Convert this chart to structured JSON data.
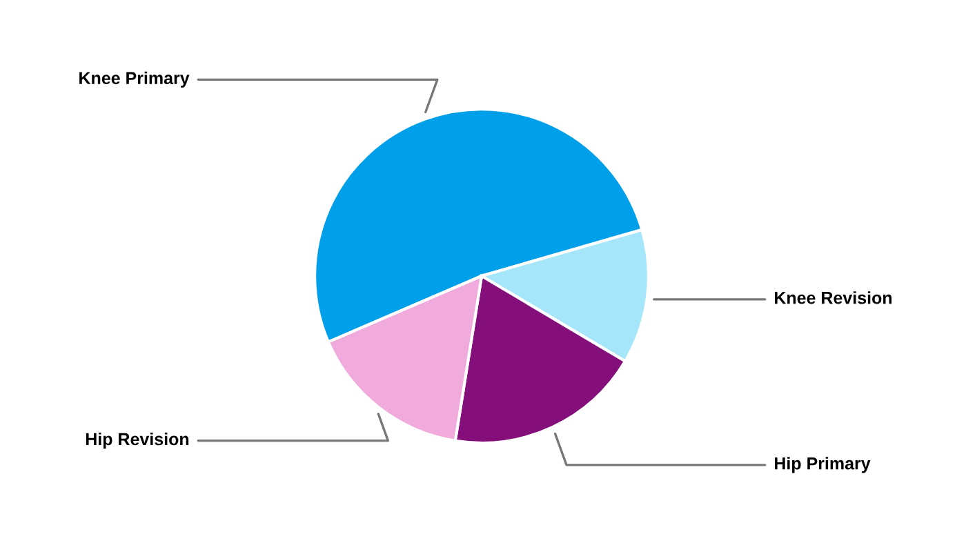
{
  "chart_data": {
    "type": "pie",
    "categories": [
      "Knee Primary",
      "Knee Revision",
      "Hip Primary",
      "Hip Revision"
    ],
    "values": [
      52,
      13,
      19,
      16
    ],
    "colors": [
      "#009fea",
      "#a6e6fb",
      "#850f7a",
      "#f0aadb"
    ]
  }
}
